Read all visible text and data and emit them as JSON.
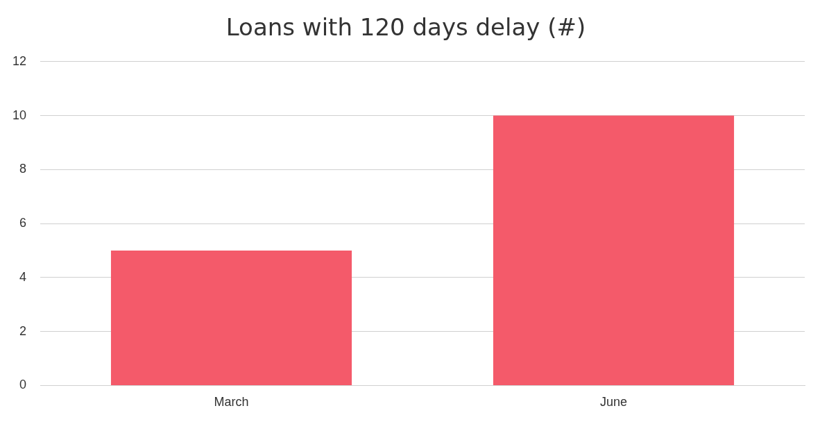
{
  "chart_data": {
    "type": "bar",
    "title": "Loans with 120 days delay (#)",
    "categories": [
      "March",
      "June"
    ],
    "values": [
      5,
      10
    ],
    "color": "#f45a6a",
    "ylim": [
      0,
      12
    ],
    "yticks": [
      0,
      2,
      4,
      6,
      8,
      10,
      12
    ],
    "grid": "y",
    "legend": false
  }
}
